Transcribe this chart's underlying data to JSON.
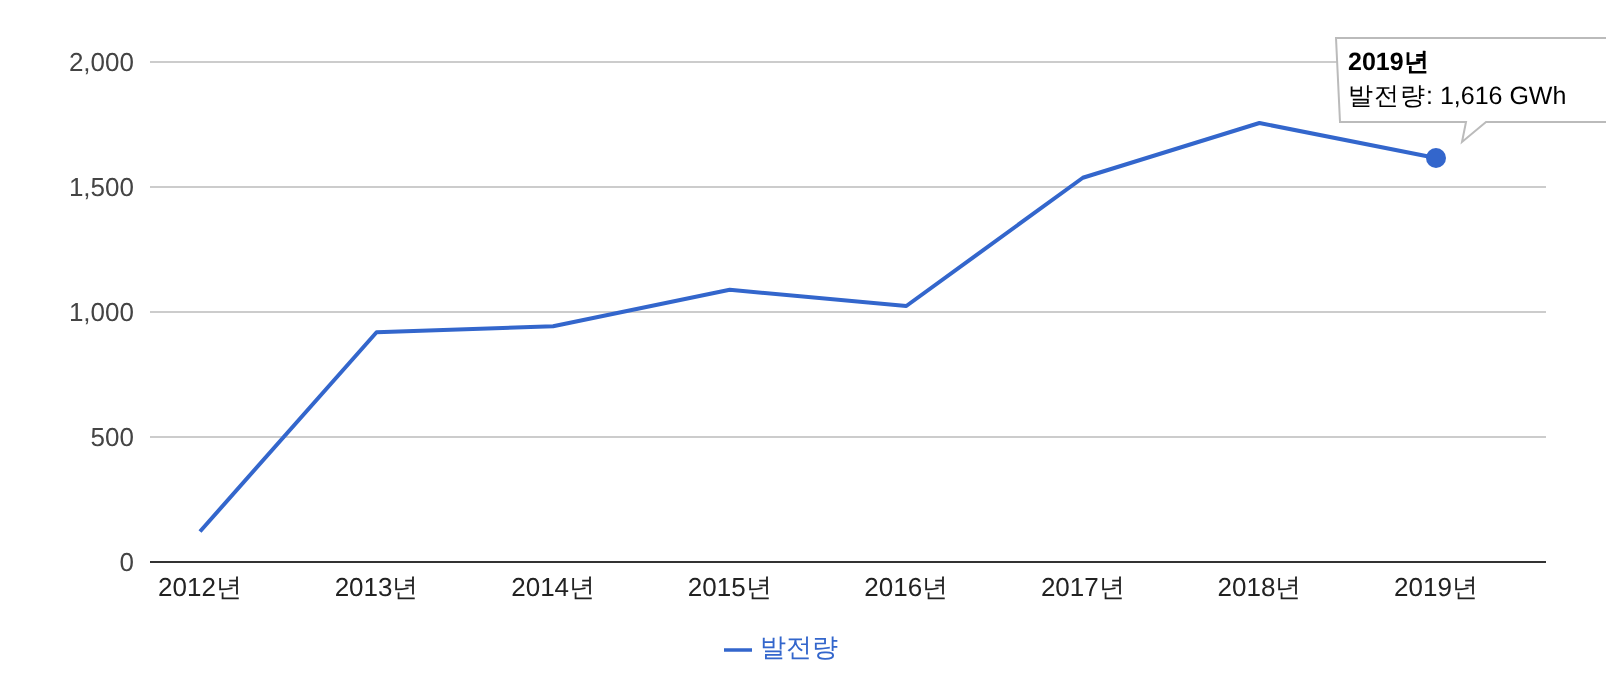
{
  "chart_data": {
    "type": "line",
    "categories": [
      "2012년",
      "2013년",
      "2014년",
      "2015년",
      "2016년",
      "2017년",
      "2018년",
      "2019년"
    ],
    "series": [
      {
        "name": "발전량",
        "color": "#3366cc",
        "values": [
          122,
          919,
          943,
          1089,
          1024,
          1537,
          1756,
          1616
        ]
      }
    ],
    "ylim": [
      0,
      2000
    ],
    "yticks": [
      {
        "value": 0,
        "label": "0"
      },
      {
        "value": 500,
        "label": "500"
      },
      {
        "value": 1000,
        "label": "1,000"
      },
      {
        "value": 1500,
        "label": "1,500"
      },
      {
        "value": 2000,
        "label": "2,000"
      }
    ],
    "grid": "y",
    "legend": "bottom",
    "marker": "none",
    "line_style": "solid",
    "annotations": [
      {
        "text": "2019년\n발전량: 1,616 GWh",
        "x": "2019년",
        "y": 1616
      }
    ]
  }
}
